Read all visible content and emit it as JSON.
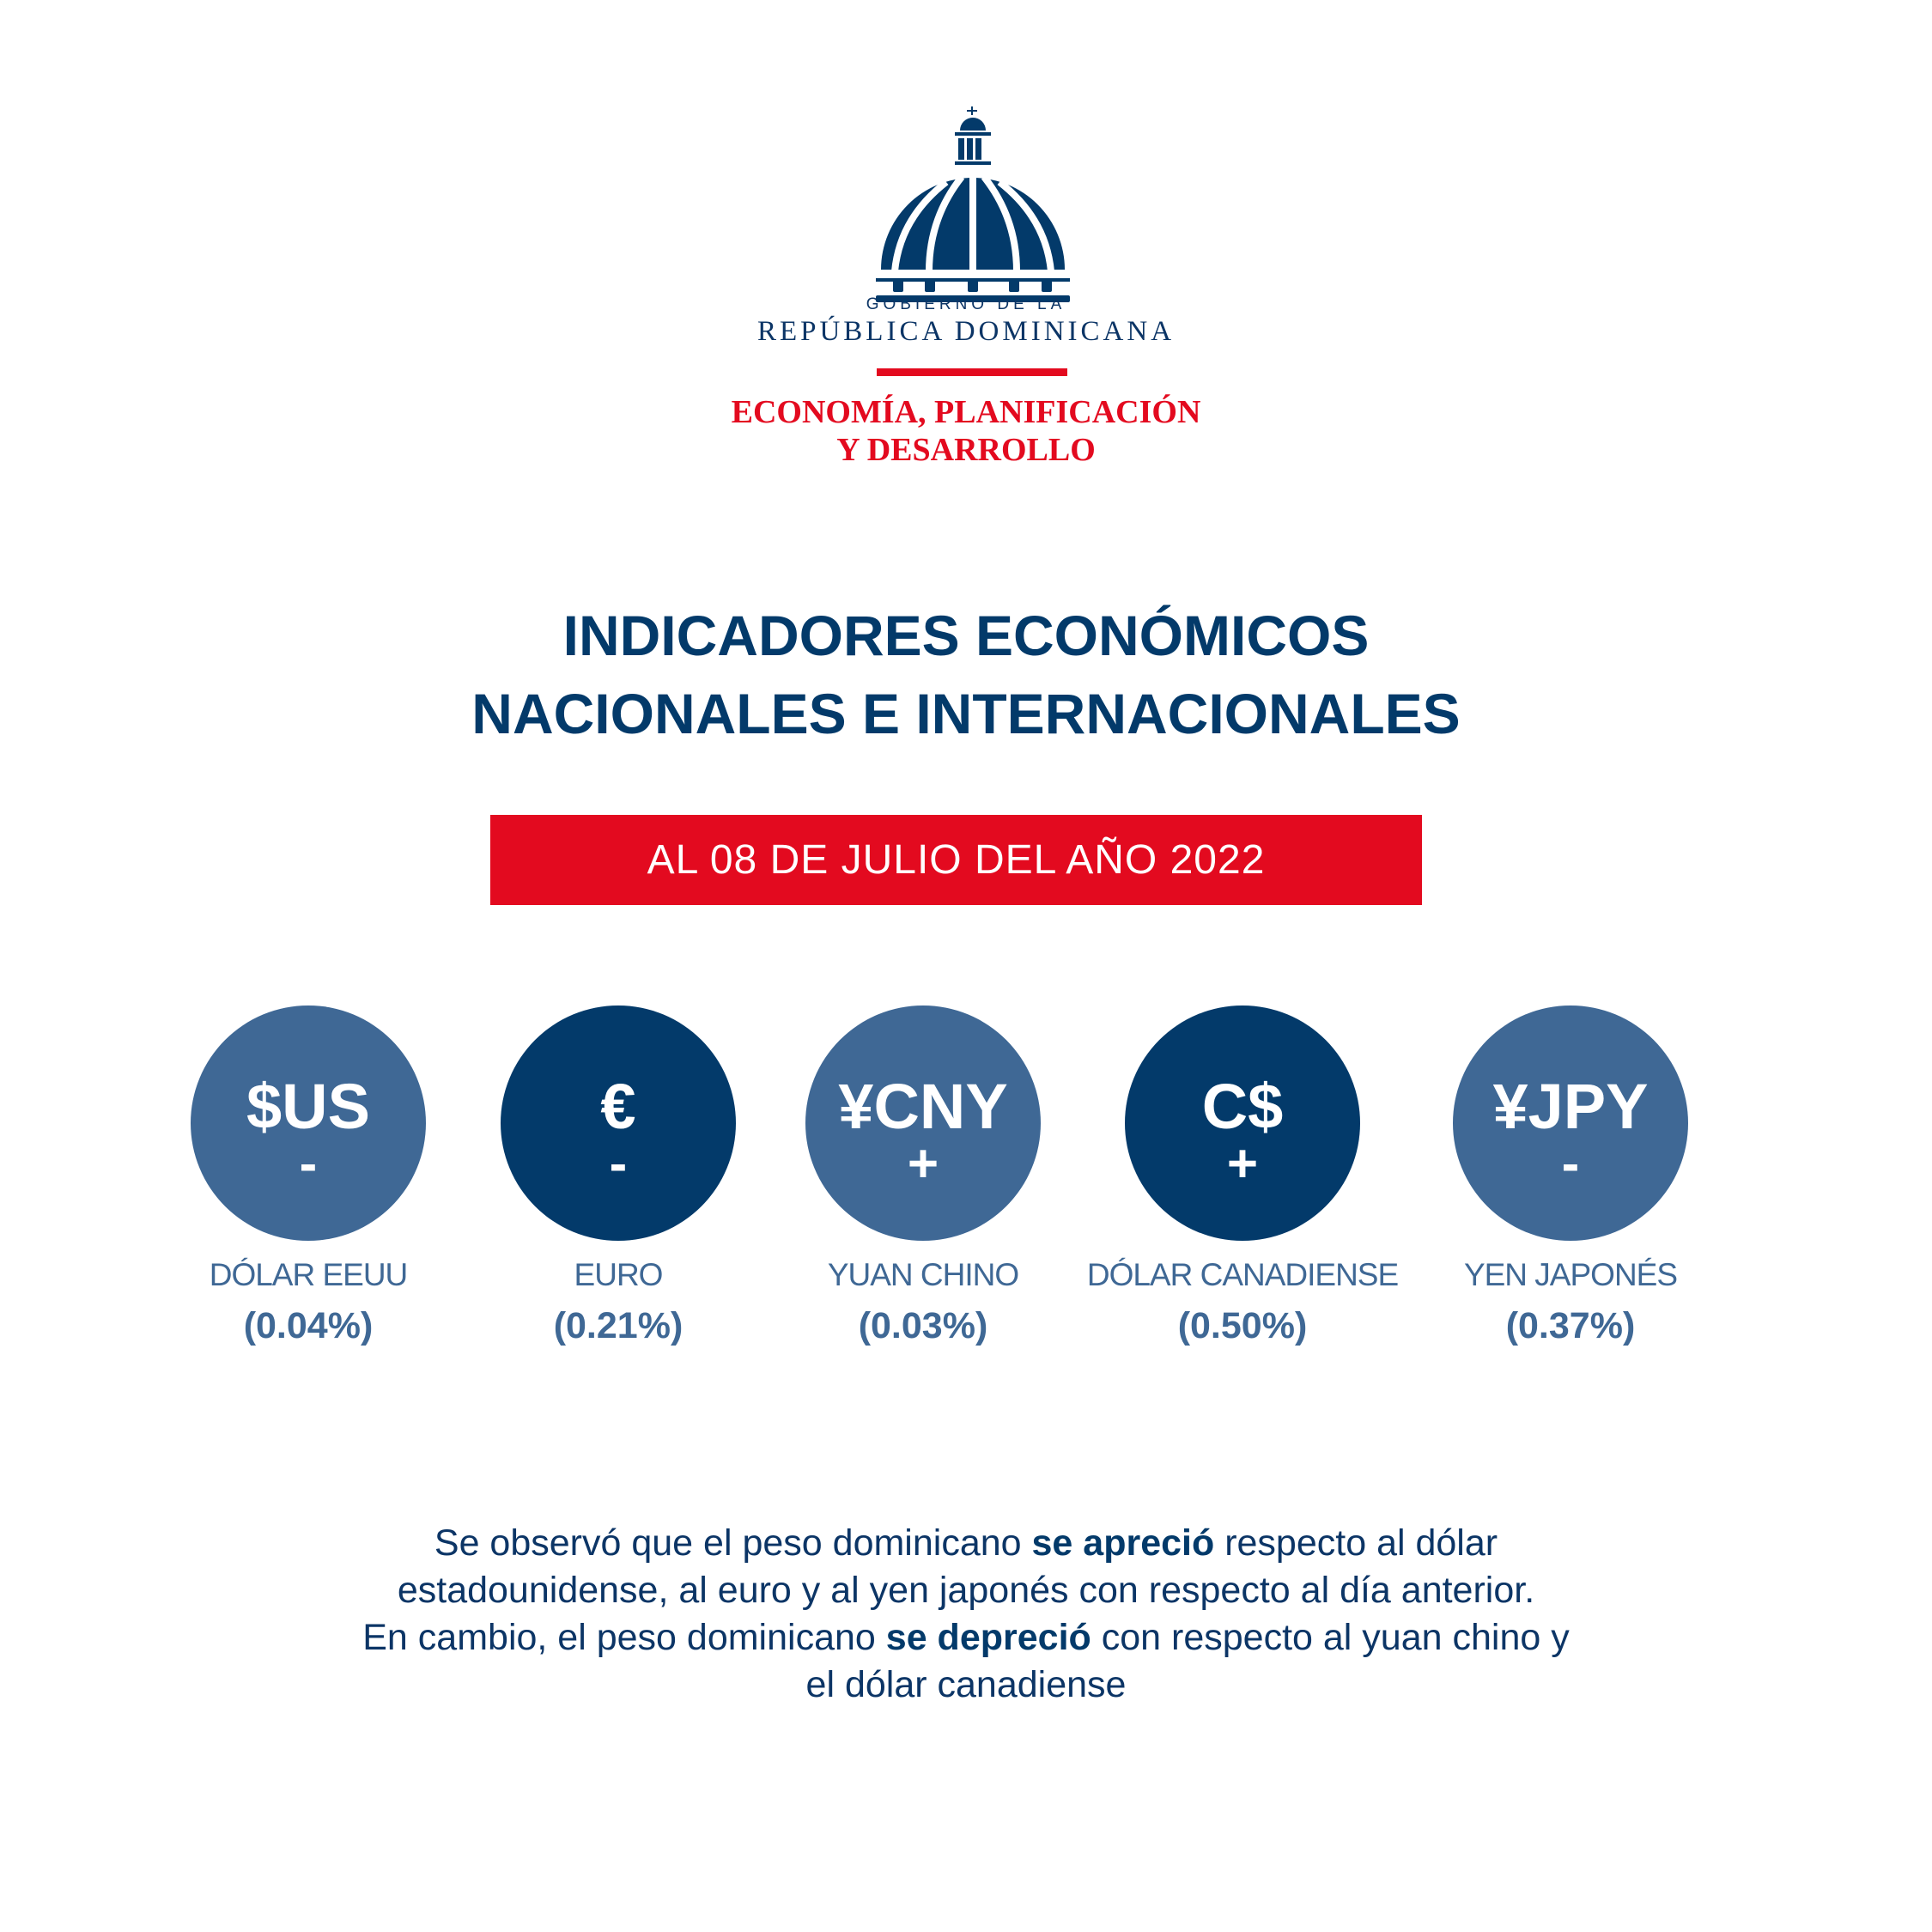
{
  "logo": {
    "line1": "GOBIERNO DE LA",
    "line2": "REPÚBLICA DOMINICANA",
    "ministry_line1": "ECONOMÍA, PLANIFICACIÓN",
    "ministry_line2": "Y DESARROLLO",
    "icon": "dome-icon"
  },
  "title": {
    "line1": "INDICADORES ECONÓMICOS",
    "line2": "NACIONALES E INTERNACIONALES"
  },
  "date_banner": "AL 08 DE JULIO DEL AÑO 2022",
  "colors": {
    "light_blue": "#3f6895",
    "dark_blue": "#033a6a",
    "red": "#e30a1f"
  },
  "currencies": [
    {
      "symbol": "$US",
      "sign": "-",
      "name": "DÓLAR EEUU",
      "change": "(0.04%)",
      "color": "#3f6895"
    },
    {
      "symbol": "€",
      "sign": "-",
      "name": "EURO",
      "change": "(0.21%)",
      "color": "#033a6a"
    },
    {
      "symbol": "¥CNY",
      "sign": "+",
      "name": "YUAN CHINO",
      "change": "(0.03%)",
      "color": "#3f6895"
    },
    {
      "symbol": "C$",
      "sign": "+",
      "name": "DÓLAR CANADIENSE",
      "change": "(0.50%)",
      "color": "#033a6a"
    },
    {
      "symbol": "¥JPY",
      "sign": "-",
      "name": "YEN JAPONÉS",
      "change": "(0.37%)",
      "color": "#3f6895"
    }
  ],
  "summary": {
    "p1": "Se observó que el peso dominicano ",
    "b1": "se apreció",
    "p2": " respecto al dólar",
    "p3": "estadounidense, al euro y al yen japonés con respecto al día anterior.",
    "p4": "En cambio, el peso dominicano ",
    "b2": "se depreció",
    "p5": " con respecto al yuan chino y",
    "p6": "el dólar canadiense"
  }
}
